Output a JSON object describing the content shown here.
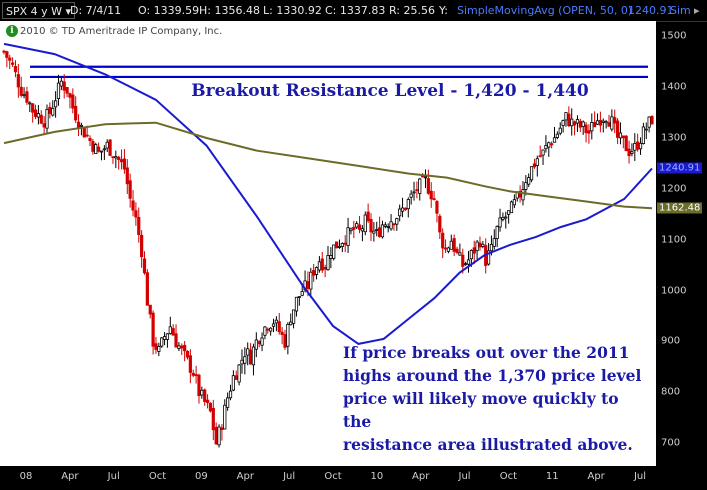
{
  "toolbar": {
    "symbol": "SPX",
    "period": "4 y W",
    "date": "D: 7/4/11",
    "open": "O: 1339.59",
    "high": "H: 1356.48",
    "low": "L: 1330.92",
    "close": "C: 1337.83",
    "range": "R: 25.56",
    "y": "Y:",
    "study1": "SimpleMovingAvg (OPEN, 50, 0)",
    "study1_value": "1240.91",
    "study2": "Sim"
  },
  "copyright": "2010 © TD Ameritrade IP Company, Inc.",
  "info_icon": "i",
  "annotation": [
    "If price breaks out over the 2011",
    "highs around the 1,370 price level",
    "price will likely move quickly to the",
    "resistance area illustrated above."
  ],
  "colors": {
    "up_candle": "#000000",
    "down_candle": "#d40000",
    "ma_fast": "#1a1ad0",
    "ma_slow": "#6b6b2a",
    "resistance": "#0000c8",
    "text_blue": "#1a1aa6"
  },
  "chart_data": {
    "type": "candlestick",
    "title": "Breakout Resistance Level - 1,420 - 1,440",
    "x_tick_labels": [
      "08",
      "Apr",
      "Jul",
      "Oct",
      "09",
      "Apr",
      "Jul",
      "Oct",
      "10",
      "Apr",
      "Jul",
      "Oct",
      "11",
      "Apr",
      "Jul"
    ],
    "y_ticks": [
      700,
      800,
      900,
      1000,
      1100,
      1200,
      1300,
      1400,
      1500
    ],
    "ylim": [
      655,
      1530
    ],
    "grid": false,
    "resistance_levels": [
      1420,
      1440
    ],
    "price_badges": [
      {
        "label": "1240.91",
        "value": 1240.91
      },
      {
        "label": "1162.48",
        "value": 1162.48
      }
    ],
    "series": [
      {
        "name": "SimpleMovingAvg (OPEN, 50, 0)",
        "kind": "ma",
        "color": "#1a1ad0",
        "points": [
          [
            0,
            1485
          ],
          [
            20,
            1465
          ],
          [
            40,
            1425
          ],
          [
            60,
            1375
          ],
          [
            80,
            1285
          ],
          [
            100,
            1145
          ],
          [
            118,
            1010
          ],
          [
            130,
            930
          ],
          [
            140,
            895
          ],
          [
            150,
            905
          ],
          [
            160,
            945
          ],
          [
            170,
            985
          ],
          [
            180,
            1035
          ],
          [
            190,
            1070
          ],
          [
            200,
            1090
          ],
          [
            210,
            1105
          ],
          [
            220,
            1125
          ],
          [
            230,
            1140
          ],
          [
            245,
            1180
          ],
          [
            256,
            1240
          ]
        ]
      },
      {
        "name": "",
        "kind": "ma",
        "color": "#6b6b2a",
        "points": [
          [
            0,
            1290
          ],
          [
            20,
            1312
          ],
          [
            40,
            1327
          ],
          [
            60,
            1330
          ],
          [
            80,
            1300
          ],
          [
            100,
            1275
          ],
          [
            120,
            1260
          ],
          [
            140,
            1245
          ],
          [
            160,
            1230
          ],
          [
            175,
            1222
          ],
          [
            190,
            1205
          ],
          [
            200,
            1195
          ],
          [
            215,
            1185
          ],
          [
            230,
            1175
          ],
          [
            245,
            1165
          ],
          [
            256,
            1162
          ]
        ]
      }
    ],
    "candle_anchors": [
      [
        0,
        1470
      ],
      [
        3,
        1440
      ],
      [
        6,
        1395
      ],
      [
        8,
        1380
      ],
      [
        10,
        1355
      ],
      [
        12,
        1345
      ],
      [
        14,
        1335
      ],
      [
        16,
        1350
      ],
      [
        18,
        1380
      ],
      [
        20,
        1410
      ],
      [
        22,
        1395
      ],
      [
        24,
        1360
      ],
      [
        27,
        1320
      ],
      [
        30,
        1295
      ],
      [
        33,
        1270
      ],
      [
        36,
        1285
      ],
      [
        39,
        1265
      ],
      [
        42,
        1240
      ],
      [
        44,
        1180
      ],
      [
        46,
        1140
      ],
      [
        48,
        1080
      ],
      [
        50,
        980
      ],
      [
        52,
        900
      ],
      [
        54,
        880
      ],
      [
        56,
        910
      ],
      [
        58,
        930
      ],
      [
        60,
        900
      ],
      [
        62,
        880
      ],
      [
        64,
        860
      ],
      [
        66,
        840
      ],
      [
        68,
        800
      ],
      [
        70,
        780
      ],
      [
        72,
        760
      ],
      [
        74,
        700
      ],
      [
        76,
        740
      ],
      [
        78,
        790
      ],
      [
        80,
        830
      ],
      [
        82,
        850
      ],
      [
        84,
        880
      ],
      [
        86,
        870
      ],
      [
        88,
        900
      ],
      [
        90,
        920
      ],
      [
        92,
        935
      ],
      [
        94,
        940
      ],
      [
        96,
        920
      ],
      [
        98,
        900
      ],
      [
        100,
        950
      ],
      [
        102,
        980
      ],
      [
        104,
        1000
      ],
      [
        106,
        1010
      ],
      [
        108,
        1040
      ],
      [
        110,
        1060
      ],
      [
        112,
        1050
      ],
      [
        114,
        1080
      ],
      [
        116,
        1090
      ],
      [
        118,
        1100
      ],
      [
        120,
        1110
      ],
      [
        122,
        1120
      ],
      [
        124,
        1115
      ],
      [
        126,
        1135
      ],
      [
        128,
        1120
      ],
      [
        130,
        1110
      ],
      [
        132,
        1130
      ],
      [
        135,
        1140
      ],
      [
        138,
        1150
      ],
      [
        141,
        1175
      ],
      [
        144,
        1200
      ],
      [
        147,
        1215
      ],
      [
        150,
        1180
      ],
      [
        152,
        1110
      ],
      [
        154,
        1080
      ],
      [
        156,
        1100
      ],
      [
        158,
        1070
      ],
      [
        160,
        1050
      ],
      [
        162,
        1060
      ],
      [
        164,
        1080
      ],
      [
        166,
        1100
      ],
      [
        168,
        1060
      ],
      [
        170,
        1080
      ],
      [
        172,
        1120
      ],
      [
        174,
        1140
      ],
      [
        176,
        1150
      ],
      [
        178,
        1170
      ],
      [
        180,
        1190
      ],
      [
        182,
        1220
      ],
      [
        184,
        1240
      ],
      [
        186,
        1260
      ],
      [
        188,
        1270
      ],
      [
        190,
        1290
      ],
      [
        192,
        1300
      ],
      [
        194,
        1320
      ],
      [
        196,
        1340
      ],
      [
        198,
        1330
      ],
      [
        200,
        1325
      ],
      [
        202,
        1320
      ],
      [
        204,
        1310
      ],
      [
        206,
        1330
      ],
      [
        208,
        1340
      ],
      [
        210,
        1345
      ],
      [
        212,
        1330
      ],
      [
        214,
        1300
      ],
      [
        216,
        1290
      ],
      [
        218,
        1275
      ],
      [
        220,
        1280
      ],
      [
        222,
        1300
      ],
      [
        224,
        1320
      ],
      [
        226,
        1338
      ]
    ]
  }
}
